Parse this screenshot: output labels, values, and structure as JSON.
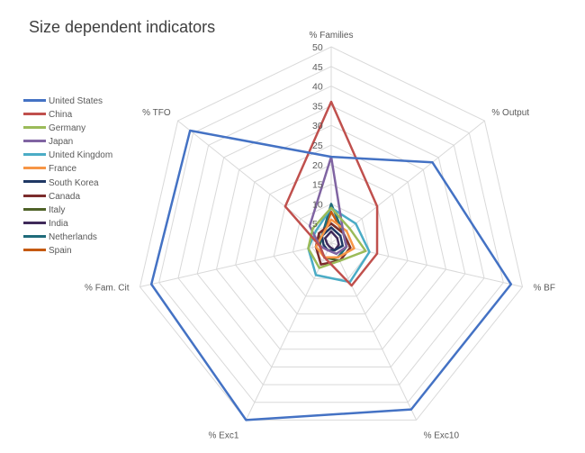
{
  "chart_data": {
    "type": "radar",
    "title": "Size dependent indicators",
    "axes": [
      "% Families",
      "% Output",
      "% BF",
      "% Exc10",
      "% Exc1",
      "% Fam. Cit",
      "% TFO"
    ],
    "scale": {
      "min": 0,
      "max": 50,
      "step": 5
    },
    "tick_labels": [
      "5",
      "10",
      "15",
      "20",
      "25",
      "30",
      "35",
      "40",
      "45",
      "50"
    ],
    "legend_position": "left",
    "series": [
      {
        "name": "United States",
        "color": "#4472C4",
        "values": [
          22,
          33,
          47,
          47,
          50,
          47,
          46
        ]
      },
      {
        "name": "China",
        "color": "#C0504D",
        "values": [
          36,
          15,
          12,
          12,
          4,
          3,
          15
        ]
      },
      {
        "name": "Germany",
        "color": "#9BBB59",
        "values": [
          9,
          6,
          9,
          5,
          7,
          6,
          6
        ]
      },
      {
        "name": "Japan",
        "color": "#8064A2",
        "values": [
          22,
          4,
          4,
          3,
          2,
          3,
          7
        ]
      },
      {
        "name": "United Kingdom",
        "color": "#4BACC6",
        "values": [
          9,
          8,
          10,
          11,
          9,
          6,
          5
        ]
      },
      {
        "name": "France",
        "color": "#F79646",
        "values": [
          6,
          5,
          6,
          4,
          4,
          4,
          3
        ]
      },
      {
        "name": "South Korea",
        "color": "#1F3864",
        "values": [
          4,
          3,
          3,
          2,
          2,
          2,
          3
        ]
      },
      {
        "name": "Canada",
        "color": "#7B2C2C",
        "values": [
          5,
          4,
          5,
          5,
          6,
          4,
          4
        ]
      },
      {
        "name": "Italy",
        "color": "#4F6228",
        "values": [
          5,
          4,
          5,
          5,
          4,
          3,
          4
        ]
      },
      {
        "name": "India",
        "color": "#3F2A5A",
        "values": [
          3,
          2,
          2,
          2,
          1,
          1,
          2
        ]
      },
      {
        "name": "Netherlands",
        "color": "#1F6B7A",
        "values": [
          10,
          4,
          4,
          4,
          4,
          3,
          3
        ]
      },
      {
        "name": "Spain",
        "color": "#C55A11",
        "values": [
          8,
          4,
          4,
          4,
          4,
          3,
          3
        ]
      }
    ]
  }
}
